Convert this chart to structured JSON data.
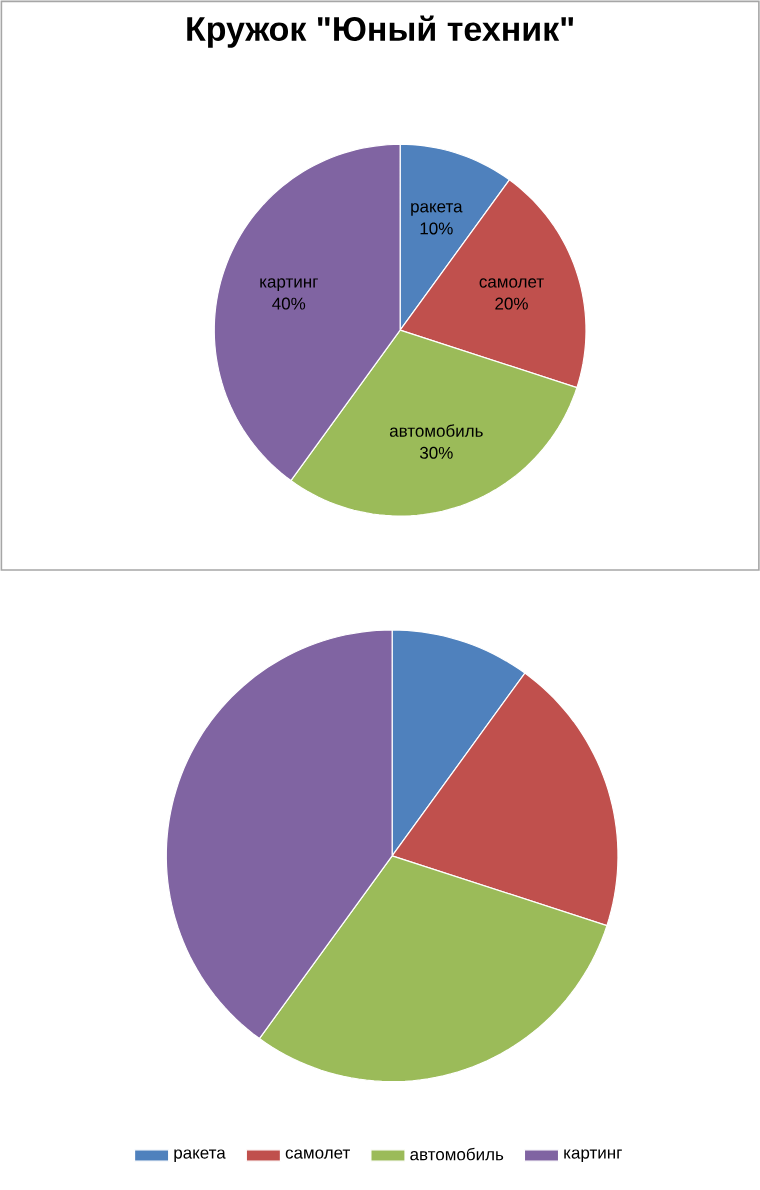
{
  "chart_data": [
    {
      "type": "pie",
      "title": "Кружок \"Юный техник\"",
      "categories": [
        "ракета",
        "самолет",
        "автомобиль",
        "картинг"
      ],
      "values": [
        10,
        20,
        30,
        40
      ],
      "colors": [
        "#4f81bd",
        "#c0504d",
        "#9bbb59",
        "#8064a2"
      ],
      "value_labels": [
        "10%",
        "20%",
        "30%",
        "40%"
      ],
      "legend": false
    },
    {
      "type": "pie",
      "categories": [
        "ракета",
        "самолет",
        "автомобиль",
        "картинг"
      ],
      "values": [
        10,
        20,
        30,
        40
      ],
      "colors": [
        "#4f81bd",
        "#c0504d",
        "#9bbb59",
        "#8064a2"
      ],
      "legend": "bottom"
    }
  ]
}
